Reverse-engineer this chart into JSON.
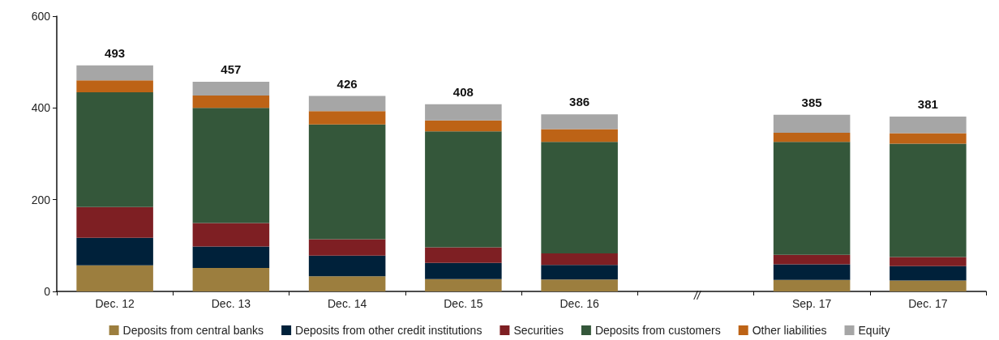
{
  "chart_data": {
    "type": "bar",
    "stacked": true,
    "categories": [
      "Dec. 12",
      "Dec. 13",
      "Dec. 14",
      "Dec. 15",
      "Dec. 16",
      null,
      "Sep. 17",
      "Dec. 17"
    ],
    "series": [
      {
        "name": "Deposits from central banks",
        "color": "#9c7e3e",
        "values": [
          57,
          51,
          33,
          27,
          26,
          null,
          25,
          24
        ]
      },
      {
        "name": "Deposits from other credit institutions",
        "color": "#00213a",
        "values": [
          60,
          47,
          45,
          35,
          32,
          null,
          34,
          31
        ]
      },
      {
        "name": "Securities",
        "color": "#7e1f23",
        "values": [
          67,
          51,
          36,
          34,
          25,
          null,
          21,
          20
        ]
      },
      {
        "name": "Deposits from customers",
        "color": "#34573a",
        "values": [
          250,
          251,
          250,
          253,
          243,
          null,
          246,
          247
        ]
      },
      {
        "name": "Other liabilities",
        "color": "#bd6316",
        "values": [
          26,
          27,
          29,
          24,
          28,
          null,
          20,
          23
        ]
      },
      {
        "name": "Equity",
        "color": "#a6a6a6",
        "values": [
          33,
          30,
          33,
          35,
          32,
          null,
          39,
          36
        ]
      }
    ],
    "totals": [
      "493",
      "457",
      "426",
      "408",
      "386",
      null,
      "385",
      "381"
    ],
    "annotations": [
      "//"
    ],
    "ylim": [
      0,
      600
    ],
    "yticks": [
      0,
      200,
      400,
      600
    ],
    "grid": false,
    "legend": "bottom"
  }
}
